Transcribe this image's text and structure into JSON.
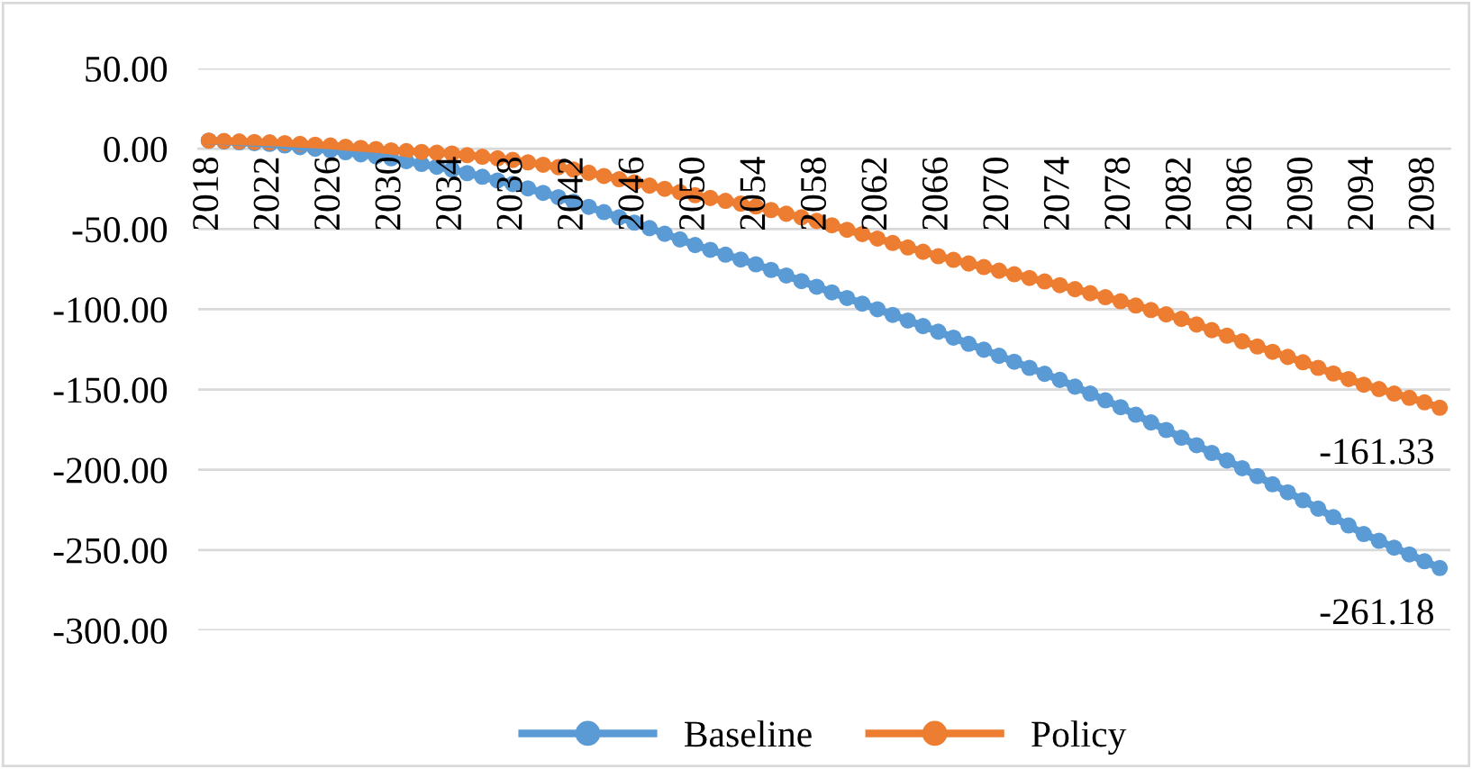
{
  "chart_data": {
    "type": "line",
    "categories": [
      "2018",
      null,
      null,
      null,
      "2022",
      null,
      null,
      null,
      "2026",
      null,
      null,
      null,
      "2030",
      null,
      null,
      null,
      "2034",
      null,
      null,
      null,
      "2038",
      null,
      null,
      null,
      "2042",
      null,
      null,
      null,
      "2046",
      null,
      null,
      null,
      "2050",
      null,
      null,
      null,
      "2054",
      null,
      null,
      null,
      "2058",
      null,
      null,
      null,
      "2062",
      null,
      null,
      null,
      "2066",
      null,
      null,
      null,
      "2070",
      null,
      null,
      null,
      "2074",
      null,
      null,
      null,
      "2078",
      null,
      null,
      null,
      "2082",
      null,
      null,
      null,
      "2086",
      null,
      null,
      null,
      "2090",
      null,
      null,
      null,
      "2094",
      null,
      null,
      null,
      "2098",
      null
    ],
    "series": [
      {
        "name": "Baseline",
        "color": "#5b9bd5",
        "values": [
          5,
          4.5,
          4,
          3.5,
          3,
          2,
          1,
          0,
          -1,
          -2.2,
          -3.5,
          -4.8,
          -6,
          -7.7,
          -9.5,
          -11.2,
          -13,
          -15.2,
          -17.5,
          -19.8,
          -22,
          -24.7,
          -27.5,
          -30.2,
          -33,
          -36.2,
          -39.5,
          -42.7,
          -46,
          -49.5,
          -53,
          -56.5,
          -60,
          -63,
          -66,
          -69,
          -72,
          -75.5,
          -79,
          -82.5,
          -86,
          -89.5,
          -93,
          -96.5,
          -100,
          -103.5,
          -107,
          -110.5,
          -114,
          -117.7,
          -121.5,
          -125.2,
          -129,
          -132.7,
          -136.5,
          -140.2,
          -144,
          -148.2,
          -152.5,
          -156.7,
          -161,
          -165.7,
          -170.5,
          -175.2,
          -180,
          -184.7,
          -189.5,
          -194.2,
          -199,
          -204,
          -209,
          -214,
          -219,
          -224.2,
          -229.5,
          -234.7,
          -240,
          -244.2,
          -248.5,
          -252.7,
          -257,
          -261.18
        ],
        "value_labels": [
          null,
          null,
          null,
          null,
          null,
          null,
          null,
          null,
          null,
          null,
          null,
          null,
          null,
          null,
          null,
          null,
          null,
          null,
          null,
          null,
          null,
          null,
          null,
          null,
          null,
          null,
          null,
          null,
          null,
          null,
          null,
          null,
          null,
          null,
          null,
          null,
          null,
          null,
          null,
          null,
          null,
          null,
          null,
          null,
          null,
          null,
          null,
          null,
          null,
          null,
          null,
          null,
          null,
          null,
          null,
          null,
          null,
          null,
          null,
          null,
          null,
          null,
          null,
          null,
          null,
          null,
          null,
          null,
          null,
          null,
          null,
          null,
          null,
          null,
          null,
          null,
          null,
          null,
          null,
          null,
          null,
          "-261.18"
        ]
      },
      {
        "name": "Policy",
        "color": "#ed7d31",
        "values": [
          5,
          4.8,
          4.5,
          4.2,
          4,
          3.5,
          3,
          2.5,
          2,
          1.2,
          0.5,
          -0.2,
          -1,
          -1.5,
          -2,
          -2.5,
          -3,
          -4,
          -5,
          -6,
          -7,
          -8.5,
          -10,
          -11.5,
          -13,
          -15,
          -17,
          -19,
          -21,
          -23,
          -25,
          -27,
          -29,
          -30.7,
          -32.5,
          -34.2,
          -36,
          -38.2,
          -40.5,
          -42.7,
          -45,
          -47.7,
          -50.5,
          -53.2,
          -56,
          -58.7,
          -61.5,
          -64.2,
          -67,
          -69.2,
          -71.5,
          -73.7,
          -76,
          -78.2,
          -80.5,
          -82.7,
          -85,
          -87.5,
          -90,
          -92.5,
          -95,
          -97.7,
          -100.5,
          -103.2,
          -106,
          -109.5,
          -113,
          -116.5,
          -120,
          -123.2,
          -126.5,
          -129.7,
          -133,
          -136.5,
          -140,
          -143.5,
          -147,
          -149.7,
          -152.5,
          -155.2,
          -158,
          -161.33
        ],
        "value_labels": [
          null,
          null,
          null,
          null,
          null,
          null,
          null,
          null,
          null,
          null,
          null,
          null,
          null,
          null,
          null,
          null,
          null,
          null,
          null,
          null,
          null,
          null,
          null,
          null,
          null,
          null,
          null,
          null,
          null,
          null,
          null,
          null,
          null,
          null,
          null,
          null,
          null,
          null,
          null,
          null,
          null,
          null,
          null,
          null,
          null,
          null,
          null,
          null,
          null,
          null,
          null,
          null,
          null,
          null,
          null,
          null,
          null,
          null,
          null,
          null,
          null,
          null,
          null,
          null,
          null,
          null,
          null,
          null,
          null,
          null,
          null,
          null,
          null,
          null,
          null,
          null,
          null,
          null,
          null,
          null,
          null,
          "-161.33"
        ]
      }
    ],
    "ylim": [
      -300,
      50
    ],
    "yticks": [
      {
        "value": 50,
        "label": "50.00"
      },
      {
        "value": 0,
        "label": "0.00"
      },
      {
        "value": -50,
        "label": "-50.00"
      },
      {
        "value": -100,
        "label": "-100.00"
      },
      {
        "value": -150,
        "label": "-150.00"
      },
      {
        "value": -200,
        "label": "-200.00"
      },
      {
        "value": -250,
        "label": "-250.00"
      },
      {
        "value": -300,
        "label": "-300.00"
      }
    ],
    "grid": "y",
    "legend": "bottom",
    "marker": "circle",
    "line_style": "solid"
  }
}
